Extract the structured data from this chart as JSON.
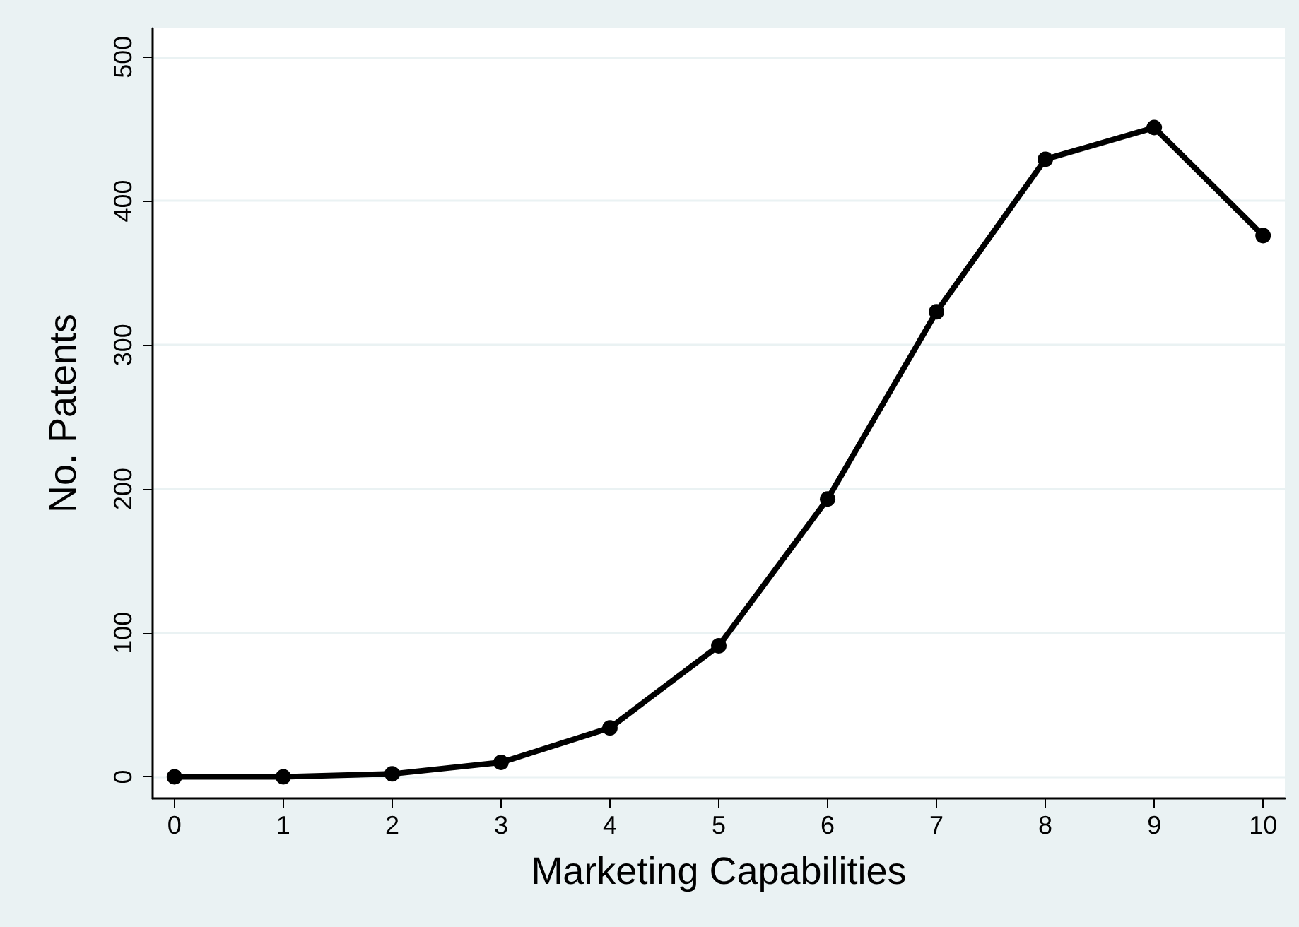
{
  "chart_data": {
    "type": "line",
    "xlabel": "Marketing Capabilities",
    "ylabel": "No. Patents",
    "x": [
      0,
      1,
      2,
      3,
      4,
      5,
      6,
      7,
      8,
      9,
      10
    ],
    "series": [
      {
        "color": "#000000",
        "values": [
          0,
          0,
          2,
          10,
          34,
          91,
          193,
          323,
          429,
          451,
          376
        ]
      }
    ],
    "xlim": [
      -0.2,
      10.2
    ],
    "xticks": [
      0,
      1,
      2,
      3,
      4,
      5,
      6,
      7,
      8,
      9,
      10
    ],
    "ylim": [
      -15,
      520
    ],
    "yticks": [
      0,
      100,
      200,
      300,
      400,
      500
    ],
    "grid": "y",
    "marker": "circle",
    "line_style": "solid"
  }
}
